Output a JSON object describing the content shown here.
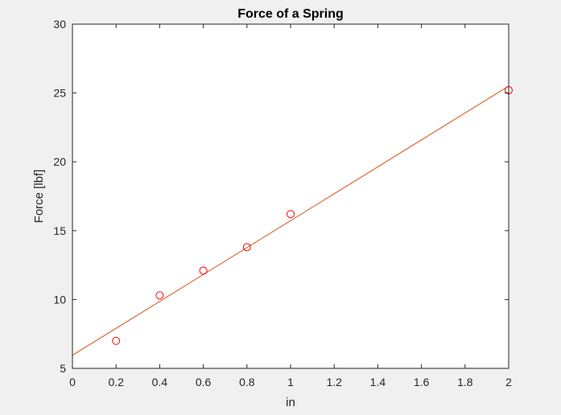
{
  "chart_data": {
    "type": "scatter",
    "title": "Force of a Spring",
    "xlabel": "in",
    "ylabel": "Force [lbf]",
    "xlim": [
      0,
      2
    ],
    "ylim": [
      5,
      30
    ],
    "xticks": [
      0,
      0.2,
      0.4,
      0.6,
      0.8,
      1,
      1.2,
      1.4,
      1.6,
      1.8,
      2
    ],
    "xtick_labels": [
      "0",
      "0.2",
      "0.4",
      "0.6",
      "0.8",
      "1",
      "1.2",
      "1.4",
      "1.6",
      "1.8",
      "2"
    ],
    "yticks": [
      5,
      10,
      15,
      20,
      25,
      30
    ],
    "ytick_labels": [
      "5",
      "10",
      "15",
      "20",
      "25",
      "30"
    ],
    "grid": false,
    "series": [
      {
        "kind": "markers",
        "marker": "circle-open",
        "color": "#ff0000",
        "x": [
          0.2,
          0.4,
          0.6,
          0.8,
          1.0,
          2.0
        ],
        "y": [
          7.0,
          10.3,
          12.1,
          13.8,
          16.2,
          25.2
        ]
      },
      {
        "kind": "line",
        "color": "#d95319",
        "x": [
          0,
          2
        ],
        "y": [
          5.95,
          25.5
        ]
      }
    ]
  },
  "colors": {
    "figure_background": "#f0f0f0",
    "axes_background": "#ffffff",
    "axes_color": "#262626"
  }
}
